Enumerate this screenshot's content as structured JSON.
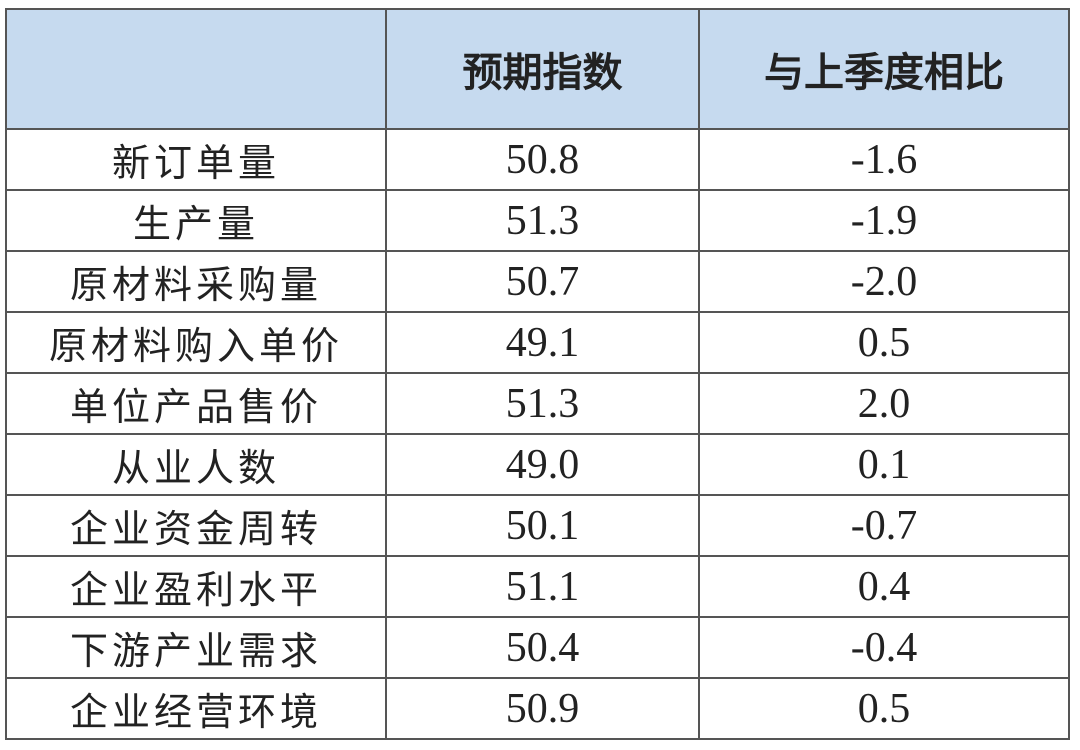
{
  "table": {
    "header": [
      "预期指数",
      "与上季度相比"
    ],
    "rows": [
      [
        "新订单量",
        "50.8",
        "-1.6"
      ],
      [
        "生产量",
        "51.3",
        "-1.9"
      ],
      [
        "原材料采购量",
        "50.7",
        "-2.0"
      ],
      [
        "原材料购入单价",
        "49.1",
        "0.5"
      ],
      [
        "单位产品售价",
        "51.3",
        "2.0"
      ],
      [
        "从业人数",
        "49.0",
        "0.1"
      ],
      [
        "企业资金周转",
        "50.1",
        "-0.7"
      ],
      [
        "企业盈利水平",
        "51.1",
        "0.4"
      ],
      [
        "下游产业需求",
        "50.4",
        "-0.4"
      ],
      [
        "企业经营环境",
        "50.9",
        "0.5"
      ]
    ]
  }
}
